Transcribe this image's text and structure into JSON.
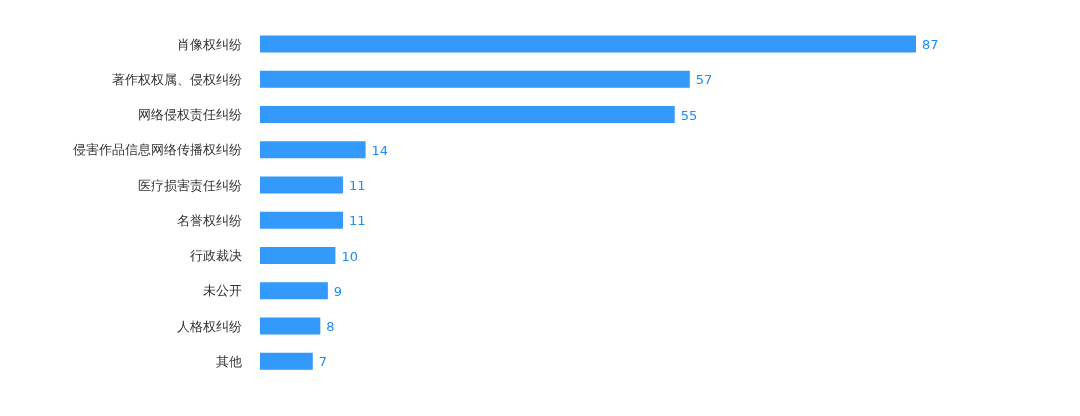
{
  "chart_data": {
    "type": "bar",
    "orientation": "horizontal",
    "data_labels": true,
    "color": "#3399fb",
    "categories": [
      "肖像权纠纷",
      "著作权权属、侵权纠纷",
      "网络侵权责任纠纷",
      "侵害作品信息网络传播权纠纷",
      "医疗损害责任纠纷",
      "名誉权纠纷",
      "行政裁决",
      "未公开",
      "人格权纠纷",
      "其他"
    ],
    "values": [
      87,
      57,
      55,
      14,
      11,
      11,
      10,
      9,
      8,
      7
    ]
  }
}
